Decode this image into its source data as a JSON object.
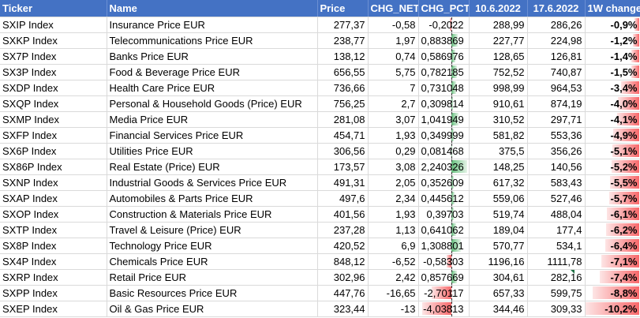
{
  "headers": {
    "ticker": "Ticker",
    "name": "Name",
    "price": "Price",
    "chg_net": "CHG_NET",
    "chg_pct": "CHG_PCT",
    "date1": "10.6.2022",
    "date2": "17.6.2022",
    "week": "1W change"
  },
  "colors": {
    "header_bg": "#4472c4",
    "positive_bar": "#63be7b",
    "negative_bar": "#f8696b"
  },
  "rows": [
    {
      "ticker": "SXIP Index",
      "name": "Insurance Price EUR",
      "price": "277,37",
      "chg_net": "-0,58",
      "chg_pct": "-0,2022",
      "pct_value": -0.2022,
      "d1": "288,99",
      "d2": "286,26",
      "w": "-0,9%",
      "w_value": -0.9
    },
    {
      "ticker": "SXKP Index",
      "name": "Telecommunications Price EUR",
      "price": "238,77",
      "chg_net": "1,97",
      "chg_pct": "0,883869",
      "pct_value": 0.883869,
      "d1": "227,77",
      "d2": "224,98",
      "w": "-1,2%",
      "w_value": -1.2
    },
    {
      "ticker": "SX7P Index",
      "name": "Banks Price EUR",
      "price": "138,12",
      "chg_net": "0,74",
      "chg_pct": "0,586976",
      "pct_value": 0.586976,
      "d1": "128,65",
      "d2": "126,81",
      "w": "-1,4%",
      "w_value": -1.4
    },
    {
      "ticker": "SX3P Index",
      "name": "Food & Beverage Price EUR",
      "price": "656,55",
      "chg_net": "5,75",
      "chg_pct": "0,782185",
      "pct_value": 0.782185,
      "d1": "752,52",
      "d2": "740,87",
      "w": "-1,5%",
      "w_value": -1.5
    },
    {
      "ticker": "SXDP Index",
      "name": "Health Care Price EUR",
      "price": "736,66",
      "chg_net": "7",
      "chg_pct": "0,731048",
      "pct_value": 0.731048,
      "d1": "998,99",
      "d2": "964,53",
      "w": "-3,4%",
      "w_value": -3.4
    },
    {
      "ticker": "SXQP Index",
      "name": "Personal & Household Goods (Price) EUR",
      "price": "756,25",
      "chg_net": "2,7",
      "chg_pct": "0,309814",
      "pct_value": 0.309814,
      "d1": "910,61",
      "d2": "874,19",
      "w": "-4,0%",
      "w_value": -4.0
    },
    {
      "ticker": "SXMP Index",
      "name": "Media Price EUR",
      "price": "281,08",
      "chg_net": "3,07",
      "chg_pct": "1,041949",
      "pct_value": 1.041949,
      "d1": "310,52",
      "d2": "297,71",
      "w": "-4,1%",
      "w_value": -4.1
    },
    {
      "ticker": "SXFP Index",
      "name": "Financial Services Price EUR",
      "price": "454,71",
      "chg_net": "1,93",
      "chg_pct": "0,349999",
      "pct_value": 0.349999,
      "d1": "581,82",
      "d2": "553,36",
      "w": "-4,9%",
      "w_value": -4.9
    },
    {
      "ticker": "SX6P Index",
      "name": "Utilities Price EUR",
      "price": "306,56",
      "chg_net": "0,29",
      "chg_pct": "0,081468",
      "pct_value": 0.081468,
      "d1": "375,5",
      "d2": "356,26",
      "w": "-5,1%",
      "w_value": -5.1
    },
    {
      "ticker": "SX86P Index",
      "name": "Real Estate (Price) EUR",
      "price": "173,57",
      "chg_net": "3,08",
      "chg_pct": "2,240326",
      "pct_value": 2.240326,
      "d1": "148,25",
      "d2": "140,56",
      "w": "-5,2%",
      "w_value": -5.2
    },
    {
      "ticker": "SXNP Index",
      "name": "Industrial Goods & Services Price EUR",
      "price": "491,31",
      "chg_net": "2,05",
      "chg_pct": "0,352609",
      "pct_value": 0.352609,
      "d1": "617,32",
      "d2": "583,43",
      "w": "-5,5%",
      "w_value": -5.5
    },
    {
      "ticker": "SXAP Index",
      "name": "Automobiles & Parts Price EUR",
      "price": "497,6",
      "chg_net": "2,34",
      "chg_pct": "0,445612",
      "pct_value": 0.445612,
      "d1": "559,06",
      "d2": "527,46",
      "w": "-5,7%",
      "w_value": -5.7
    },
    {
      "ticker": "SXOP Index",
      "name": "Construction & Materials Price EUR",
      "price": "401,56",
      "chg_net": "1,93",
      "chg_pct": "0,39703",
      "pct_value": 0.39703,
      "d1": "519,74",
      "d2": "488,04",
      "w": "-6,1%",
      "w_value": -6.1
    },
    {
      "ticker": "SXTP Index",
      "name": "Travel & Leisure (Price) EUR",
      "price": "237,28",
      "chg_net": "1,13",
      "chg_pct": "0,641062",
      "pct_value": 0.641062,
      "d1": "189,04",
      "d2": "177,4",
      "w": "-6,2%",
      "w_value": -6.2
    },
    {
      "ticker": "SX8P Index",
      "name": "Technology Price EUR",
      "price": "420,52",
      "chg_net": "6,9",
      "chg_pct": "1,308801",
      "pct_value": 1.308801,
      "d1": "570,77",
      "d2": "534,1",
      "w": "-6,4%",
      "w_value": -6.4
    },
    {
      "ticker": "SX4P Index",
      "name": "Chemicals Price EUR",
      "price": "848,12",
      "chg_net": "-6,52",
      "chg_pct": "-0,58303",
      "pct_value": -0.58303,
      "d1": "1196,16",
      "d2": "1111,78",
      "w": "-7,1%",
      "w_value": -7.1
    },
    {
      "ticker": "SXRP Index",
      "name": "Retail Price EUR",
      "price": "302,96",
      "chg_net": "2,42",
      "chg_pct": "0,857669",
      "pct_value": 0.857669,
      "d1": "304,61",
      "d2": "282,16",
      "w": "-7,4%",
      "w_value": -7.4
    },
    {
      "ticker": "SXPP Index",
      "name": "Basic Resources Price EUR",
      "price": "447,76",
      "chg_net": "-16,65",
      "chg_pct": "-2,70117",
      "pct_value": -2.70117,
      "d1": "657,33",
      "d2": "599,75",
      "w": "-8,8%",
      "w_value": -8.8
    },
    {
      "ticker": "SXEP Index",
      "name": "Oil & Gas Price EUR",
      "price": "323,44",
      "chg_net": "-13",
      "chg_pct": "-4,03813",
      "pct_value": -4.03813,
      "d1": "344,46",
      "d2": "309,33",
      "w": "-10,2%",
      "w_value": -10.2
    }
  ]
}
